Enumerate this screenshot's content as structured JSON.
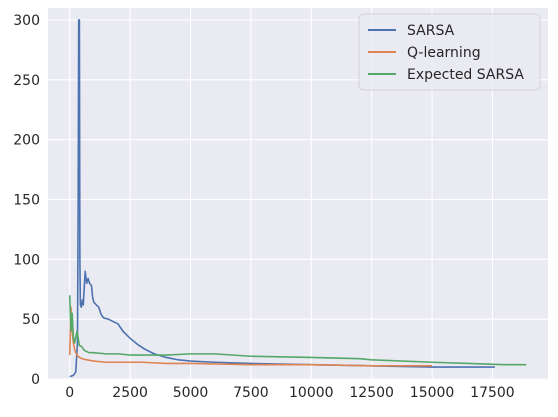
{
  "chart_data": {
    "type": "line",
    "title": "",
    "xlabel": "",
    "ylabel": "",
    "xlim": [
      -900,
      19800
    ],
    "ylim": [
      0,
      310
    ],
    "grid": true,
    "legend_position": "top-right",
    "x_ticks": [
      0,
      2500,
      5000,
      7500,
      10000,
      12500,
      15000,
      17500
    ],
    "x_tick_labels": [
      "0",
      "2500",
      "5000",
      "7500",
      "10000",
      "12500",
      "15000",
      "17500"
    ],
    "y_ticks": [
      0,
      50,
      100,
      150,
      200,
      250,
      300
    ],
    "y_tick_labels": [
      "0",
      "50",
      "100",
      "150",
      "200",
      "250",
      "300"
    ],
    "colors": {
      "background": "#eaeaf2",
      "grid": "#ffffff",
      "text": "#262626"
    },
    "series": [
      {
        "name": "SARSA",
        "color": "#4c72b0",
        "points": [
          [
            0,
            2
          ],
          [
            150,
            3
          ],
          [
            250,
            6
          ],
          [
            320,
            30
          ],
          [
            350,
            150
          ],
          [
            370,
            300
          ],
          [
            400,
            300
          ],
          [
            420,
            100
          ],
          [
            440,
            62
          ],
          [
            480,
            60
          ],
          [
            520,
            66
          ],
          [
            560,
            62
          ],
          [
            600,
            76
          ],
          [
            640,
            90
          ],
          [
            700,
            80
          ],
          [
            760,
            84
          ],
          [
            820,
            80
          ],
          [
            900,
            78
          ],
          [
            950,
            68
          ],
          [
            1000,
            64
          ],
          [
            1100,
            62
          ],
          [
            1200,
            60
          ],
          [
            1300,
            54
          ],
          [
            1400,
            51
          ],
          [
            1600,
            50
          ],
          [
            1800,
            48
          ],
          [
            2000,
            46
          ],
          [
            2200,
            40
          ],
          [
            2500,
            34
          ],
          [
            2800,
            29
          ],
          [
            3100,
            25
          ],
          [
            3500,
            21
          ],
          [
            4000,
            18
          ],
          [
            4500,
            16
          ],
          [
            5000,
            15
          ],
          [
            6000,
            14
          ],
          [
            7500,
            13
          ],
          [
            10000,
            12
          ],
          [
            12500,
            11
          ],
          [
            15000,
            10
          ],
          [
            17600,
            10
          ]
        ]
      },
      {
        "name": "Q-learning",
        "color": "#dd8452",
        "points": [
          [
            0,
            20
          ],
          [
            50,
            60
          ],
          [
            100,
            40
          ],
          [
            150,
            30
          ],
          [
            200,
            25
          ],
          [
            250,
            22
          ],
          [
            300,
            20
          ],
          [
            400,
            18
          ],
          [
            500,
            17
          ],
          [
            700,
            16
          ],
          [
            1000,
            15
          ],
          [
            1500,
            14
          ],
          [
            2000,
            14
          ],
          [
            3000,
            14
          ],
          [
            4000,
            13
          ],
          [
            5000,
            13
          ],
          [
            7500,
            12
          ],
          [
            10000,
            12
          ],
          [
            12500,
            11
          ],
          [
            15000,
            11
          ]
        ]
      },
      {
        "name": "Expected SARSA",
        "color": "#55a868",
        "points": [
          [
            0,
            70
          ],
          [
            50,
            40
          ],
          [
            100,
            55
          ],
          [
            150,
            35
          ],
          [
            200,
            30
          ],
          [
            300,
            40
          ],
          [
            400,
            28
          ],
          [
            500,
            27
          ],
          [
            600,
            24
          ],
          [
            800,
            22
          ],
          [
            1000,
            22
          ],
          [
            1500,
            21
          ],
          [
            2000,
            21
          ],
          [
            2500,
            20
          ],
          [
            3000,
            20
          ],
          [
            4000,
            20
          ],
          [
            5000,
            21
          ],
          [
            6000,
            21
          ],
          [
            7500,
            19
          ],
          [
            10000,
            18
          ],
          [
            12000,
            17
          ],
          [
            12500,
            16
          ],
          [
            15000,
            14
          ],
          [
            16500,
            13
          ],
          [
            18000,
            12
          ],
          [
            18900,
            12
          ]
        ]
      }
    ]
  }
}
